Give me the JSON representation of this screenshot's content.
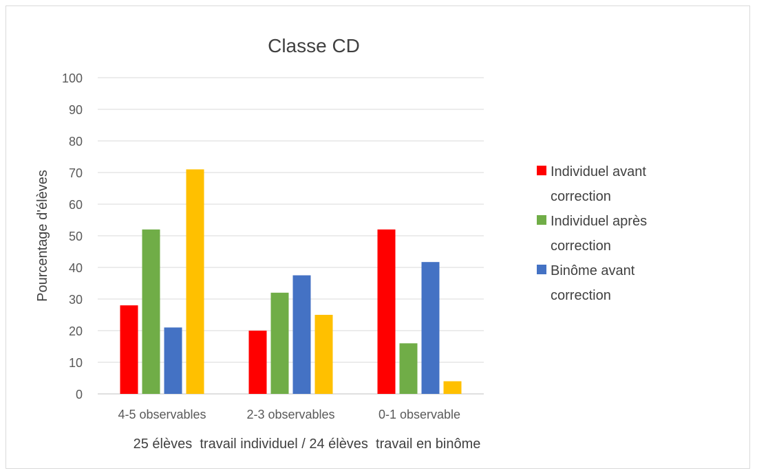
{
  "chart_data": {
    "type": "bar",
    "title": "Classe CD",
    "xlabel": "25 élèves  travail individuel / 24 élèves  travail en binôme",
    "ylabel": "Pourcentage d'élèves",
    "categories": [
      "4-5 observables",
      "2-3 observables",
      "0-1 observable"
    ],
    "ylim": [
      0,
      100
    ],
    "yticks": [
      0,
      10,
      20,
      30,
      40,
      50,
      60,
      70,
      80,
      90,
      100
    ],
    "grid": true,
    "legend_position": "right",
    "series": [
      {
        "name": "Individuel avant correction",
        "color": "#ff0000",
        "values": [
          28,
          20,
          52
        ]
      },
      {
        "name": "Individuel après correction",
        "color": "#70ad47",
        "values": [
          52,
          32,
          16
        ]
      },
      {
        "name": "Binôme avant correction",
        "color": "#4472c4",
        "values": [
          21,
          37.5,
          41.7
        ]
      },
      {
        "name": "",
        "color": "#ffc000",
        "values": [
          71,
          25,
          4
        ]
      }
    ]
  }
}
